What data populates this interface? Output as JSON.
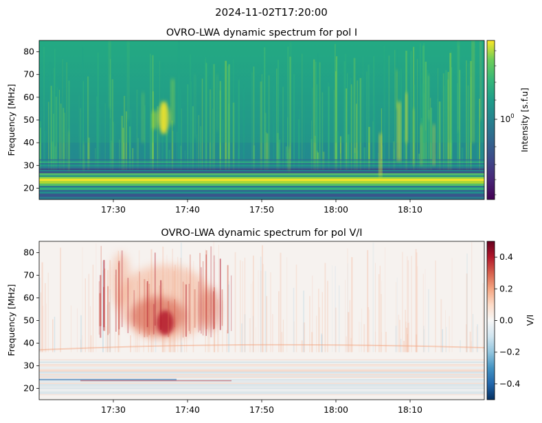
{
  "suptitle": "2024-11-02T17:20:00",
  "chart_data": [
    {
      "type": "heatmap",
      "title": "OVRO-LWA dynamic spectrum for pol I",
      "ylabel": "Frequency [MHz]",
      "xlabel": "",
      "x_ticks": [
        "17:30",
        "17:40",
        "17:50",
        "18:00",
        "18:10"
      ],
      "x_range": [
        "17:20",
        "18:20"
      ],
      "y_ticks": [
        20,
        30,
        40,
        50,
        60,
        70,
        80
      ],
      "ylim": [
        15,
        85
      ],
      "colormap": "viridis",
      "colorbar": {
        "label": "Intensity [s.f.u]",
        "scale": "log",
        "tick_label": "10",
        "tick_exponent": "0"
      },
      "features": [
        {
          "name": "bright low-frequency bands",
          "freq_range": [
            17,
            33
          ]
        },
        {
          "name": "burst cluster",
          "time_range": [
            "17:33",
            "17:40"
          ],
          "freq_range": [
            40,
            70
          ]
        },
        {
          "name": "burst",
          "time": "18:06",
          "freq_range": [
            25,
            45
          ]
        },
        {
          "name": "burst cluster",
          "time_range": [
            "18:08",
            "18:20"
          ],
          "freq_range": [
            30,
            85
          ]
        }
      ]
    },
    {
      "type": "heatmap",
      "title": "OVRO-LWA dynamic spectrum for pol V/I",
      "ylabel": "Frequency [MHz]",
      "xlabel": "",
      "x_ticks": [
        "17:30",
        "17:40",
        "17:50",
        "18:00",
        "18:10"
      ],
      "x_range": [
        "17:20",
        "18:20"
      ],
      "y_ticks": [
        20,
        30,
        40,
        50,
        60,
        70,
        80
      ],
      "ylim": [
        15,
        85
      ],
      "colormap": "RdBu_r",
      "colorbar": {
        "label": "V/I",
        "range": [
          -0.5,
          0.5
        ],
        "ticks": [
          "0.4",
          "0.2",
          "0.0",
          "−0.2",
          "−0.4"
        ]
      },
      "features": [
        {
          "name": "positive polarization region",
          "time_range": [
            "17:28",
            "17:46"
          ],
          "freq_range": [
            40,
            82
          ]
        },
        {
          "name": "strong positive core",
          "time_range": [
            "17:34",
            "17:40"
          ],
          "freq_range": [
            44,
            58
          ]
        },
        {
          "name": "mixed-sign low-frequency bands",
          "freq_range": [
            17,
            32
          ]
        }
      ]
    }
  ]
}
